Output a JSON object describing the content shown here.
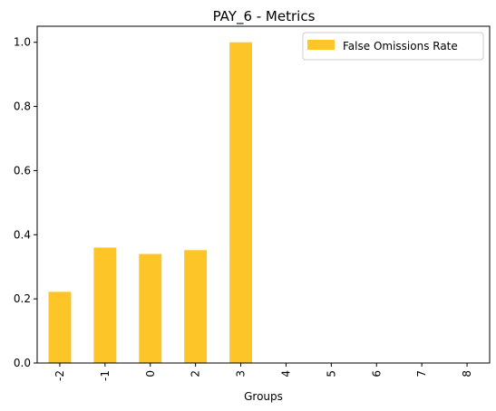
{
  "chart_data": {
    "type": "bar",
    "title": "PAY_6 - Metrics",
    "xlabel": "Groups",
    "ylabel": "",
    "categories": [
      "-2",
      "-1",
      "0",
      "2",
      "3",
      "4",
      "5",
      "6",
      "7",
      "8"
    ],
    "series": [
      {
        "name": "False Omissions Rate",
        "values": [
          0.222,
          0.36,
          0.34,
          0.352,
          1.0,
          0,
          0,
          0,
          0,
          0
        ],
        "color": "#fdc527"
      }
    ],
    "ylim": [
      0,
      1.05
    ],
    "yticks": [
      "0.0",
      "0.2",
      "0.4",
      "0.6",
      "0.8",
      "1.0"
    ],
    "grid": false,
    "legend_position": "top-right"
  }
}
